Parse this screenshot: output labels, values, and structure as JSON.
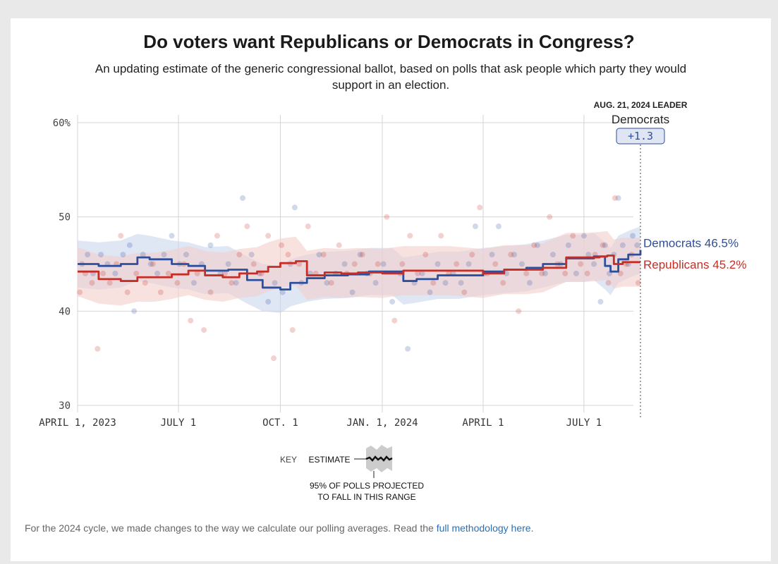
{
  "page": {
    "title": "Do voters want Republicans or Democrats in Congress?",
    "subtitle": "An updating estimate of the generic congressional ballot, based on polls that ask people which party they would support in an election.",
    "footnote_text": "For the 2024 cycle, we made changes to the way we calculate our polling averages. Read the ",
    "footnote_link": "full methodology here",
    "footnote_end": "."
  },
  "leader": {
    "date_label": "AUG. 21, 2024 LEADER",
    "party": "Democrats",
    "margin": "+1.3"
  },
  "key": {
    "label": "KEY",
    "estimate": "ESTIMATE",
    "note_line1": "95% OF POLLS PROJECTED",
    "note_line2": "TO FALL IN THIS RANGE"
  },
  "colors": {
    "democrats": "#2c4f9e",
    "republicans": "#c62e25",
    "dem_band": "#c9d5ec",
    "rep_band": "#f3cfcb",
    "grid": "#d4d4d4"
  },
  "chart_data": {
    "type": "line",
    "x_type": "date",
    "xlim": [
      "2023-04-01",
      "2024-08-21"
    ],
    "ylim": [
      30,
      60
    ],
    "y_ticks": [
      {
        "value": 60,
        "label": "60%"
      },
      {
        "value": 50,
        "label": "50"
      },
      {
        "value": 40,
        "label": "40"
      },
      {
        "value": 30,
        "label": "30"
      }
    ],
    "x_ticks": [
      {
        "date": "2023-04-01",
        "label": "APRIL 1, 2023"
      },
      {
        "date": "2023-07-01",
        "label": "JULY 1"
      },
      {
        "date": "2023-10-01",
        "label": "OCT. 1"
      },
      {
        "date": "2024-01-01",
        "label": "JAN. 1, 2024"
      },
      {
        "date": "2024-04-01",
        "label": "APRIL 1"
      },
      {
        "date": "2024-07-01",
        "label": "JULY 1"
      }
    ],
    "grid": true,
    "series": [
      {
        "name": "Democrats",
        "end_label": "Democrats 46.5%",
        "band_halfwidth": 2.5,
        "x": [
          "2023-04-01",
          "2023-04-20",
          "2023-05-10",
          "2023-05-25",
          "2023-06-05",
          "2023-06-25",
          "2023-07-10",
          "2023-07-25",
          "2023-08-15",
          "2023-09-01",
          "2023-09-15",
          "2023-10-01",
          "2023-10-10",
          "2023-10-25",
          "2023-11-10",
          "2023-12-01",
          "2023-12-20",
          "2024-01-10",
          "2024-01-20",
          "2024-02-01",
          "2024-02-20",
          "2024-03-10",
          "2024-04-01",
          "2024-04-20",
          "2024-05-10",
          "2024-05-25",
          "2024-06-15",
          "2024-07-01",
          "2024-07-10",
          "2024-07-20",
          "2024-07-25",
          "2024-08-01",
          "2024-08-10",
          "2024-08-21"
        ],
        "values": [
          45.0,
          44.8,
          45.0,
          45.7,
          45.5,
          45.0,
          44.8,
          44.3,
          44.4,
          43.3,
          42.5,
          42.3,
          43.0,
          43.5,
          43.8,
          43.9,
          44.2,
          44.2,
          43.2,
          43.4,
          43.8,
          43.8,
          44.2,
          44.4,
          44.6,
          45.0,
          45.6,
          45.6,
          45.8,
          44.8,
          44.2,
          45.5,
          46.0,
          46.5
        ]
      },
      {
        "name": "Republicans",
        "end_label": "Republicans 45.2%",
        "band_halfwidth": 2.6,
        "x": [
          "2023-04-01",
          "2023-04-20",
          "2023-05-10",
          "2023-05-25",
          "2023-06-10",
          "2023-06-25",
          "2023-07-10",
          "2023-07-25",
          "2023-08-10",
          "2023-08-25",
          "2023-09-10",
          "2023-09-20",
          "2023-10-01",
          "2023-10-15",
          "2023-10-25",
          "2023-11-10",
          "2023-11-25",
          "2023-12-10",
          "2024-01-01",
          "2024-01-20",
          "2024-02-10",
          "2024-03-01",
          "2024-04-01",
          "2024-04-20",
          "2024-05-10",
          "2024-05-25",
          "2024-06-15",
          "2024-07-01",
          "2024-07-15",
          "2024-07-22",
          "2024-07-28",
          "2024-08-05",
          "2024-08-21"
        ],
        "values": [
          44.2,
          43.4,
          43.2,
          43.6,
          43.6,
          43.9,
          44.3,
          43.8,
          43.6,
          44.0,
          44.2,
          44.7,
          45.1,
          45.3,
          43.8,
          44.1,
          44.0,
          44.1,
          44.0,
          44.3,
          44.3,
          44.3,
          44.0,
          44.4,
          44.4,
          44.6,
          45.7,
          45.7,
          45.8,
          45.9,
          45.0,
          45.2,
          45.2
        ]
      }
    ],
    "scatter": [
      {
        "series": "Democrats",
        "points": [
          [
            "2023-04-05",
            45
          ],
          [
            "2023-04-10",
            46
          ],
          [
            "2023-04-15",
            44
          ],
          [
            "2023-04-22",
            46
          ],
          [
            "2023-04-28",
            45
          ],
          [
            "2023-05-05",
            44
          ],
          [
            "2023-05-12",
            46
          ],
          [
            "2023-05-18",
            47
          ],
          [
            "2023-05-22",
            40
          ],
          [
            "2023-05-30",
            46
          ],
          [
            "2023-06-06",
            45
          ],
          [
            "2023-06-12",
            44
          ],
          [
            "2023-06-18",
            46
          ],
          [
            "2023-06-25",
            48
          ],
          [
            "2023-07-02",
            45
          ],
          [
            "2023-07-08",
            46
          ],
          [
            "2023-07-15",
            43
          ],
          [
            "2023-07-22",
            45
          ],
          [
            "2023-07-30",
            47
          ],
          [
            "2023-08-08",
            44
          ],
          [
            "2023-08-15",
            45
          ],
          [
            "2023-08-22",
            43
          ],
          [
            "2023-08-28",
            52
          ],
          [
            "2023-09-05",
            46
          ],
          [
            "2023-09-12",
            44
          ],
          [
            "2023-09-20",
            41
          ],
          [
            "2023-09-26",
            43
          ],
          [
            "2023-10-03",
            42
          ],
          [
            "2023-10-10",
            45
          ],
          [
            "2023-10-14",
            51
          ],
          [
            "2023-10-20",
            43
          ],
          [
            "2023-10-28",
            44
          ],
          [
            "2023-11-05",
            46
          ],
          [
            "2023-11-12",
            43
          ],
          [
            "2023-11-20",
            44
          ],
          [
            "2023-11-28",
            45
          ],
          [
            "2023-12-05",
            42
          ],
          [
            "2023-12-12",
            46
          ],
          [
            "2023-12-18",
            44
          ],
          [
            "2023-12-26",
            43
          ],
          [
            "2024-01-02",
            45
          ],
          [
            "2024-01-10",
            41
          ],
          [
            "2024-01-17",
            44
          ],
          [
            "2024-01-24",
            36
          ],
          [
            "2024-01-30",
            43
          ],
          [
            "2024-02-06",
            44
          ],
          [
            "2024-02-13",
            42
          ],
          [
            "2024-02-20",
            45
          ],
          [
            "2024-02-27",
            43
          ],
          [
            "2024-03-05",
            44
          ],
          [
            "2024-03-12",
            43
          ],
          [
            "2024-03-19",
            45
          ],
          [
            "2024-03-25",
            49
          ],
          [
            "2024-04-02",
            44
          ],
          [
            "2024-04-09",
            46
          ],
          [
            "2024-04-15",
            49
          ],
          [
            "2024-04-22",
            44
          ],
          [
            "2024-04-29",
            46
          ],
          [
            "2024-05-06",
            45
          ],
          [
            "2024-05-13",
            43
          ],
          [
            "2024-05-20",
            47
          ],
          [
            "2024-05-27",
            44
          ],
          [
            "2024-06-03",
            46
          ],
          [
            "2024-06-10",
            45
          ],
          [
            "2024-06-17",
            47
          ],
          [
            "2024-06-24",
            44
          ],
          [
            "2024-07-01",
            48
          ],
          [
            "2024-07-05",
            46
          ],
          [
            "2024-07-10",
            45
          ],
          [
            "2024-07-16",
            41
          ],
          [
            "2024-07-20",
            47
          ],
          [
            "2024-07-24",
            44
          ],
          [
            "2024-07-28",
            46
          ],
          [
            "2024-08-01",
            52
          ],
          [
            "2024-08-05",
            47
          ],
          [
            "2024-08-10",
            45
          ],
          [
            "2024-08-14",
            48
          ],
          [
            "2024-08-18",
            47
          ]
        ]
      },
      {
        "series": "Republicans",
        "points": [
          [
            "2023-04-03",
            42
          ],
          [
            "2023-04-08",
            44
          ],
          [
            "2023-04-14",
            43
          ],
          [
            "2023-04-19",
            36
          ],
          [
            "2023-04-24",
            44
          ],
          [
            "2023-04-30",
            43
          ],
          [
            "2023-05-06",
            45
          ],
          [
            "2023-05-10",
            48
          ],
          [
            "2023-05-16",
            42
          ],
          [
            "2023-05-24",
            44
          ],
          [
            "2023-06-01",
            43
          ],
          [
            "2023-06-08",
            45
          ],
          [
            "2023-06-15",
            42
          ],
          [
            "2023-06-22",
            44
          ],
          [
            "2023-06-30",
            43
          ],
          [
            "2023-07-06",
            45
          ],
          [
            "2023-07-12",
            39
          ],
          [
            "2023-07-18",
            44
          ],
          [
            "2023-07-24",
            38
          ],
          [
            "2023-07-30",
            42
          ],
          [
            "2023-08-05",
            48
          ],
          [
            "2023-08-12",
            44
          ],
          [
            "2023-08-18",
            43
          ],
          [
            "2023-08-25",
            46
          ],
          [
            "2023-09-01",
            49
          ],
          [
            "2023-09-07",
            45
          ],
          [
            "2023-09-14",
            44
          ],
          [
            "2023-09-20",
            48
          ],
          [
            "2023-09-25",
            35
          ],
          [
            "2023-10-02",
            47
          ],
          [
            "2023-10-08",
            46
          ],
          [
            "2023-10-12",
            38
          ],
          [
            "2023-10-18",
            45
          ],
          [
            "2023-10-26",
            49
          ],
          [
            "2023-11-02",
            44
          ],
          [
            "2023-11-09",
            46
          ],
          [
            "2023-11-16",
            43
          ],
          [
            "2023-11-23",
            47
          ],
          [
            "2023-11-30",
            44
          ],
          [
            "2023-12-07",
            45
          ],
          [
            "2023-12-14",
            46
          ],
          [
            "2023-12-21",
            44
          ],
          [
            "2023-12-28",
            45
          ],
          [
            "2024-01-05",
            50
          ],
          [
            "2024-01-12",
            39
          ],
          [
            "2024-01-19",
            45
          ],
          [
            "2024-01-26",
            48
          ],
          [
            "2024-02-02",
            44
          ],
          [
            "2024-02-09",
            46
          ],
          [
            "2024-02-16",
            43
          ],
          [
            "2024-02-23",
            48
          ],
          [
            "2024-03-01",
            44
          ],
          [
            "2024-03-08",
            45
          ],
          [
            "2024-03-15",
            42
          ],
          [
            "2024-03-22",
            46
          ],
          [
            "2024-03-29",
            51
          ],
          [
            "2024-04-05",
            44
          ],
          [
            "2024-04-12",
            45
          ],
          [
            "2024-04-19",
            43
          ],
          [
            "2024-04-26",
            46
          ],
          [
            "2024-05-03",
            40
          ],
          [
            "2024-05-10",
            44
          ],
          [
            "2024-05-17",
            47
          ],
          [
            "2024-05-24",
            44
          ],
          [
            "2024-05-31",
            50
          ],
          [
            "2024-06-07",
            45
          ],
          [
            "2024-06-14",
            44
          ],
          [
            "2024-06-21",
            48
          ],
          [
            "2024-06-28",
            45
          ],
          [
            "2024-07-04",
            44
          ],
          [
            "2024-07-11",
            46
          ],
          [
            "2024-07-18",
            47
          ],
          [
            "2024-07-23",
            43
          ],
          [
            "2024-07-29",
            52
          ],
          [
            "2024-08-03",
            44
          ],
          [
            "2024-08-08",
            45
          ],
          [
            "2024-08-13",
            46
          ],
          [
            "2024-08-19",
            43
          ]
        ]
      }
    ]
  }
}
